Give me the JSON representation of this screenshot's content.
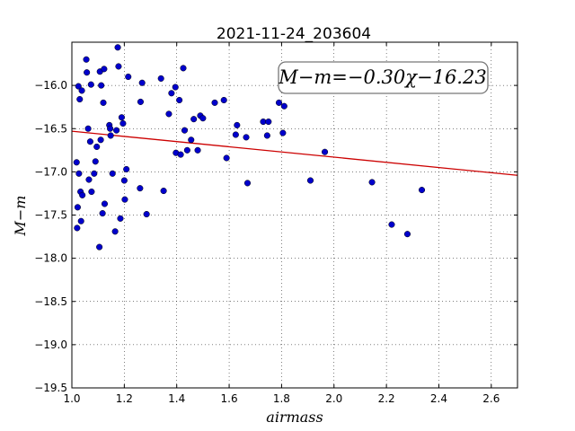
{
  "chart_data": {
    "type": "scatter",
    "title": "2021-11-24_203604",
    "xlabel": "airmass",
    "ylabel": "M−m",
    "xlim": [
      1.0,
      2.7
    ],
    "ylim": [
      -19.5,
      -15.5
    ],
    "x_ticks": [
      "1.0",
      "1.2",
      "1.4",
      "1.6",
      "1.8",
      "2.0",
      "2.2",
      "2.4",
      "2.6"
    ],
    "y_ticks": [
      "−16.0",
      "−16.5",
      "−17.0",
      "−17.5",
      "−18.0",
      "−18.5",
      "−19.0",
      "−19.5"
    ],
    "grid": true,
    "fit_label": "M−m=−0.30χ−16.23",
    "fit_line": {
      "slope": -0.3,
      "intercept": -16.23,
      "color": "#cc0000"
    },
    "marker_color": "#0000cc",
    "points": [
      [
        1.018,
        -16.89
      ],
      [
        1.02,
        -17.65
      ],
      [
        1.022,
        -17.41
      ],
      [
        1.025,
        -16.01
      ],
      [
        1.027,
        -17.02
      ],
      [
        1.03,
        -16.16
      ],
      [
        1.033,
        -17.23
      ],
      [
        1.035,
        -17.57
      ],
      [
        1.038,
        -16.06
      ],
      [
        1.04,
        -17.27
      ],
      [
        1.055,
        -15.7
      ],
      [
        1.057,
        -15.85
      ],
      [
        1.062,
        -16.5
      ],
      [
        1.065,
        -17.09
      ],
      [
        1.07,
        -16.65
      ],
      [
        1.073,
        -15.99
      ],
      [
        1.075,
        -17.23
      ],
      [
        1.085,
        -17.02
      ],
      [
        1.09,
        -16.88
      ],
      [
        1.095,
        -16.71
      ],
      [
        1.105,
        -17.87
      ],
      [
        1.107,
        -15.84
      ],
      [
        1.11,
        -16.63
      ],
      [
        1.112,
        -16.0
      ],
      [
        1.117,
        -17.48
      ],
      [
        1.12,
        -16.2
      ],
      [
        1.123,
        -15.81
      ],
      [
        1.125,
        -17.37
      ],
      [
        1.143,
        -16.46
      ],
      [
        1.146,
        -16.5
      ],
      [
        1.148,
        -16.58
      ],
      [
        1.155,
        -17.02
      ],
      [
        1.165,
        -17.69
      ],
      [
        1.17,
        -16.52
      ],
      [
        1.175,
        -15.56
      ],
      [
        1.178,
        -15.78
      ],
      [
        1.185,
        -17.54
      ],
      [
        1.19,
        -16.37
      ],
      [
        1.195,
        -16.44
      ],
      [
        1.2,
        -17.1
      ],
      [
        1.202,
        -17.32
      ],
      [
        1.208,
        -16.97
      ],
      [
        1.215,
        -15.9
      ],
      [
        1.26,
        -17.19
      ],
      [
        1.262,
        -16.19
      ],
      [
        1.268,
        -15.97
      ],
      [
        1.285,
        -17.49
      ],
      [
        1.34,
        -15.92
      ],
      [
        1.35,
        -17.22
      ],
      [
        1.37,
        -16.33
      ],
      [
        1.38,
        -16.09
      ],
      [
        1.395,
        -16.02
      ],
      [
        1.397,
        -16.78
      ],
      [
        1.41,
        -16.17
      ],
      [
        1.415,
        -16.8
      ],
      [
        1.425,
        -15.8
      ],
      [
        1.43,
        -16.52
      ],
      [
        1.44,
        -16.75
      ],
      [
        1.455,
        -16.63
      ],
      [
        1.465,
        -16.39
      ],
      [
        1.48,
        -16.75
      ],
      [
        1.49,
        -16.35
      ],
      [
        1.5,
        -16.38
      ],
      [
        1.545,
        -16.2
      ],
      [
        1.58,
        -16.17
      ],
      [
        1.59,
        -16.84
      ],
      [
        1.625,
        -16.57
      ],
      [
        1.63,
        -16.46
      ],
      [
        1.665,
        -16.6
      ],
      [
        1.67,
        -17.13
      ],
      [
        1.73,
        -16.42
      ],
      [
        1.745,
        -16.58
      ],
      [
        1.75,
        -16.42
      ],
      [
        1.79,
        -16.2
      ],
      [
        1.805,
        -16.55
      ],
      [
        1.81,
        -16.24
      ],
      [
        1.91,
        -17.1
      ],
      [
        1.965,
        -16.77
      ],
      [
        2.145,
        -17.12
      ],
      [
        2.22,
        -17.61
      ],
      [
        2.28,
        -17.72
      ],
      [
        2.335,
        -17.21
      ]
    ]
  }
}
